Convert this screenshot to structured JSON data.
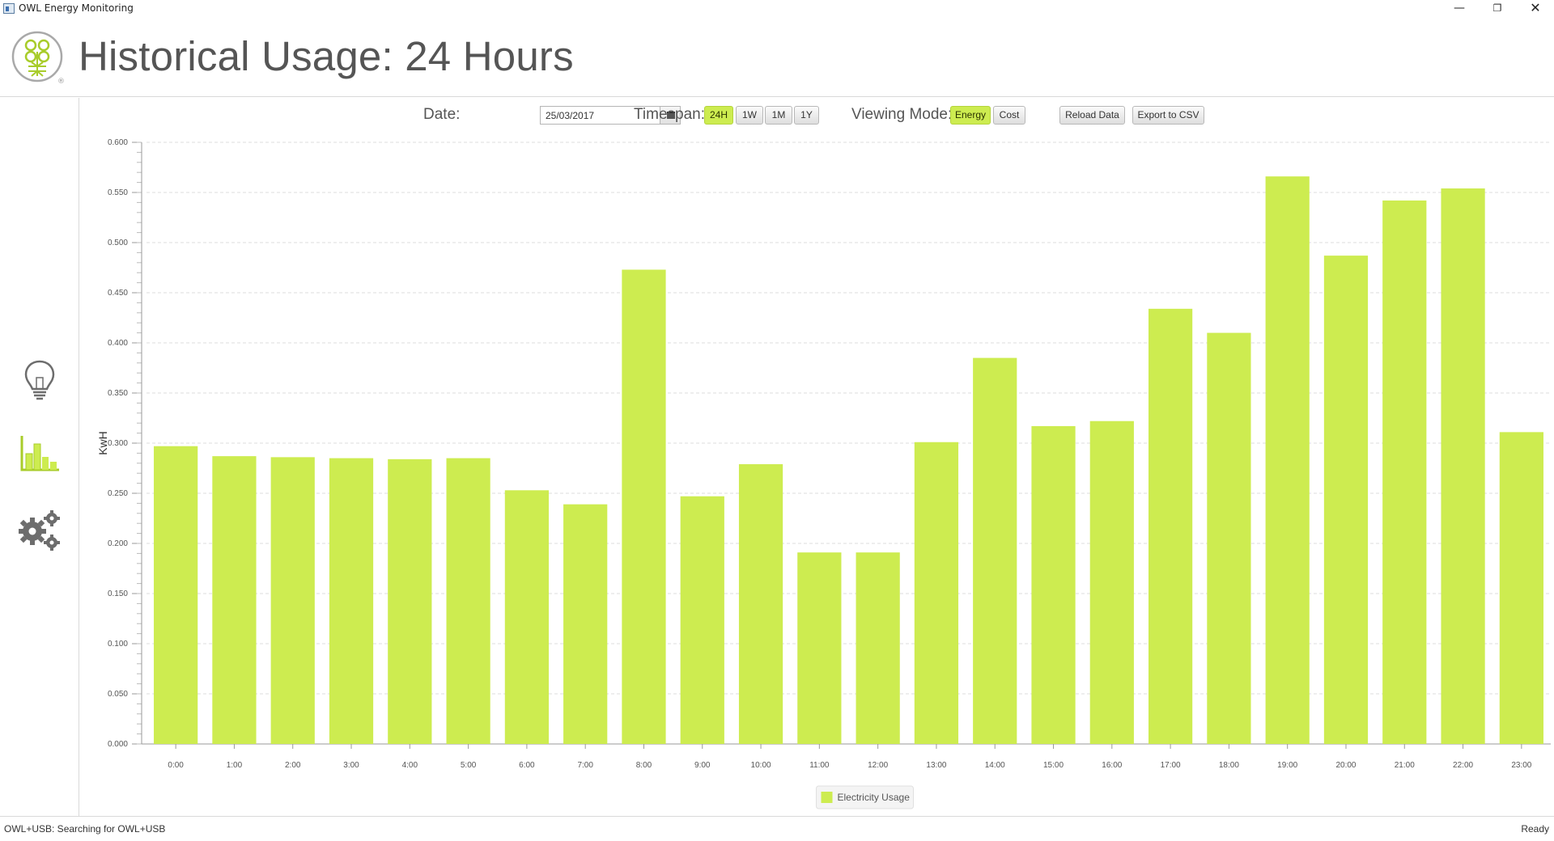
{
  "window": {
    "title": "OWL Energy Monitoring",
    "minimize_glyph": "—",
    "restore_glyph": "❐",
    "close_glyph": "✕"
  },
  "header": {
    "title": "Historical Usage: 24 Hours",
    "logo_icon": "owl-logo-icon",
    "logo_mark": "®"
  },
  "sidebar": {
    "items": [
      {
        "name": "live-usage",
        "icon": "lightbulb-icon"
      },
      {
        "name": "historical-usage",
        "icon": "bar-chart-icon",
        "active": true
      },
      {
        "name": "settings",
        "icon": "gears-icon"
      }
    ]
  },
  "controls": {
    "date_label": "Date:",
    "date_value": "25/03/2017",
    "timespan_label": "Timespan:",
    "timespan_options": [
      "24H",
      "1W",
      "1M",
      "1Y"
    ],
    "timespan_selected": "24H",
    "viewing_mode_label": "Viewing Mode:",
    "viewing_modes": [
      "Energy",
      "Cost"
    ],
    "viewing_mode_selected": "Energy",
    "reload_label": "Reload Data",
    "export_label": "Export to CSV"
  },
  "chart_data": {
    "type": "bar",
    "categories": [
      "0:00",
      "1:00",
      "2:00",
      "3:00",
      "4:00",
      "5:00",
      "6:00",
      "7:00",
      "8:00",
      "9:00",
      "10:00",
      "11:00",
      "12:00",
      "13:00",
      "14:00",
      "15:00",
      "16:00",
      "17:00",
      "18:00",
      "19:00",
      "20:00",
      "21:00",
      "22:00",
      "23:00"
    ],
    "series": [
      {
        "name": "Electricity Usage",
        "values": [
          0.297,
          0.287,
          0.286,
          0.285,
          0.284,
          0.285,
          0.253,
          0.239,
          0.473,
          0.247,
          0.279,
          0.191,
          0.191,
          0.301,
          0.385,
          0.317,
          0.322,
          0.434,
          0.41,
          0.566,
          0.487,
          0.542,
          0.554,
          0.311
        ]
      }
    ],
    "ylabel": "KwH",
    "ylim": [
      0,
      0.6
    ],
    "y_ticks": [
      "0.000",
      "0.050",
      "0.100",
      "0.150",
      "0.200",
      "0.250",
      "0.300",
      "0.350",
      "0.400",
      "0.450",
      "0.500",
      "0.550",
      "0.600"
    ],
    "grid": true,
    "legend_position": "bottom-center",
    "bar_color": "#cdec50"
  },
  "status": {
    "left": "OWL+USB:  Searching for OWL+USB",
    "right": "Ready"
  },
  "colors": {
    "accent": "#cdec50",
    "accent_dark": "#a8cc2a",
    "icon_gray": "#6d6d6d"
  }
}
